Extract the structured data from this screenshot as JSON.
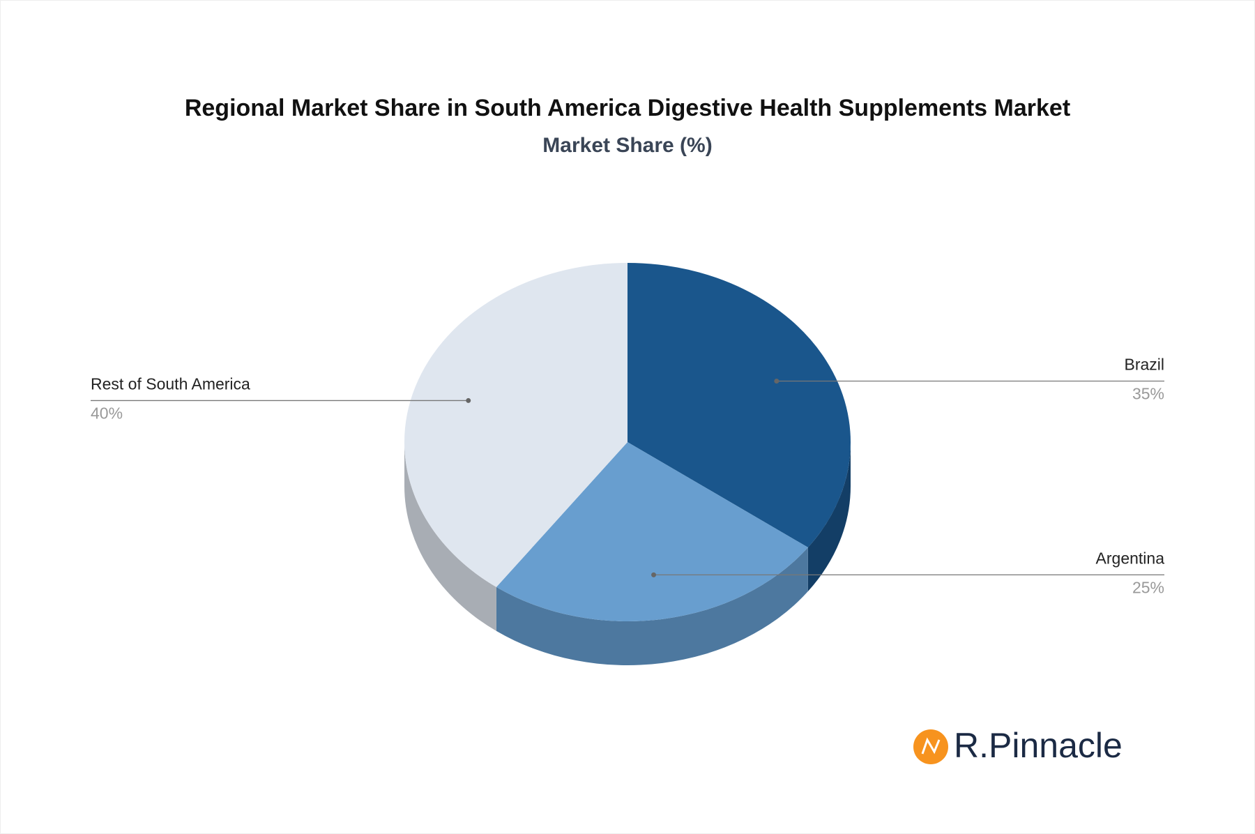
{
  "chart_data": {
    "type": "pie",
    "title": "Regional Market Share in South America Digestive Health Supplements Market",
    "subtitle": "Market Share (%)",
    "categories": [
      "Brazil",
      "Argentina",
      "Rest of South America"
    ],
    "values": [
      35,
      25,
      40
    ],
    "value_labels": [
      "35%",
      "25%",
      "40%"
    ],
    "colors": [
      "#1a568c",
      "#689ecf",
      "#dfe6ef"
    ],
    "side_colors": [
      "#133e66",
      "#4d789f",
      "#a8adb4"
    ]
  },
  "logo_text": "R.Pinnacle"
}
